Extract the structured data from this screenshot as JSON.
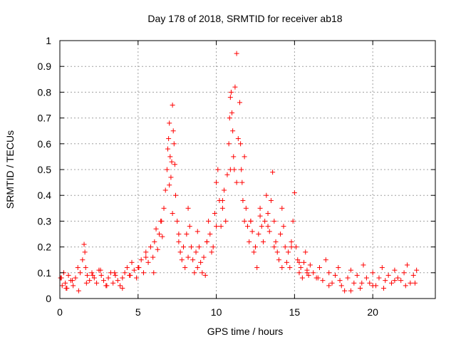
{
  "chart_data": {
    "type": "scatter",
    "title": "Day 178 of 2018, SRMTID for receiver ab18",
    "xlabel": "GPS time / hours",
    "ylabel": "SRMTID / TECUs",
    "xlim": [
      0,
      24
    ],
    "ylim": [
      0,
      1
    ],
    "grid": true,
    "marker": "+",
    "color": "#ff0000",
    "xticks": [
      0,
      5,
      10,
      15,
      20
    ],
    "xtick_labels": [
      "0",
      "5",
      "10",
      "15",
      "20"
    ],
    "yticks": [
      0,
      0.1,
      0.2,
      0.3,
      0.4,
      0.5,
      0.6,
      0.7,
      0.8,
      0.9,
      1
    ],
    "ytick_labels": [
      "0",
      "0.1",
      "0.2",
      "0.3",
      "0.4",
      "0.5",
      "0.6",
      "0.7",
      "0.8",
      "0.9",
      "1"
    ],
    "series": [
      {
        "name": "SRMTID",
        "x": [
          0.05,
          0.15,
          0.25,
          0.35,
          0.45,
          0.55,
          0.7,
          0.85,
          1.0,
          1.15,
          1.3,
          1.45,
          1.55,
          1.6,
          1.65,
          1.75,
          1.9,
          2.05,
          2.2,
          2.35,
          2.5,
          2.65,
          2.8,
          2.95,
          3.1,
          3.25,
          3.4,
          3.55,
          3.7,
          3.85,
          4.0,
          4.15,
          4.3,
          4.45,
          4.6,
          4.75,
          4.9,
          5.05,
          5.2,
          5.35,
          5.5,
          5.65,
          5.8,
          5.95,
          6.05,
          6.15,
          6.25,
          6.35,
          6.45,
          6.55,
          6.65,
          6.75,
          6.85,
          6.9,
          6.95,
          7.0,
          7.05,
          7.1,
          7.15,
          7.2,
          7.25,
          7.3,
          7.35,
          7.4,
          7.5,
          7.6,
          7.7,
          7.8,
          7.9,
          8.0,
          8.1,
          8.2,
          8.3,
          8.4,
          8.5,
          8.6,
          8.7,
          8.8,
          8.9,
          9.0,
          9.1,
          9.2,
          9.3,
          9.4,
          9.5,
          9.6,
          9.7,
          9.8,
          9.9,
          10.0,
          10.1,
          10.2,
          10.3,
          10.4,
          10.5,
          10.6,
          10.7,
          10.8,
          10.85,
          10.9,
          10.95,
          11.0,
          11.05,
          11.1,
          11.15,
          11.2,
          11.3,
          11.4,
          11.5,
          11.55,
          11.6,
          11.65,
          11.7,
          11.8,
          11.9,
          12.0,
          12.1,
          12.2,
          12.3,
          12.4,
          12.5,
          12.6,
          12.7,
          12.8,
          12.9,
          13.0,
          13.1,
          13.2,
          13.3,
          13.4,
          13.5,
          13.6,
          13.7,
          13.8,
          13.9,
          14.0,
          14.1,
          14.2,
          14.3,
          14.4,
          14.5,
          14.6,
          14.7,
          14.8,
          14.9,
          15.0,
          15.1,
          15.2,
          15.3,
          15.4,
          15.5,
          15.6,
          15.7,
          15.8,
          15.9,
          16.0,
          16.2,
          16.4,
          16.6,
          16.8,
          17.0,
          17.2,
          17.4,
          17.6,
          17.8,
          18.0,
          18.2,
          18.4,
          18.6,
          18.8,
          19.0,
          19.2,
          19.4,
          19.6,
          19.8,
          20.0,
          20.2,
          20.4,
          20.6,
          20.8,
          21.0,
          21.2,
          21.4,
          21.6,
          21.8,
          22.0,
          22.2,
          22.4,
          22.6,
          22.8,
          0.1,
          0.4,
          0.8,
          1.2,
          1.7,
          2.1,
          2.6,
          3.0,
          3.5,
          4.0,
          4.5,
          5.0,
          5.5,
          6.0,
          6.5,
          7.0,
          7.2,
          7.6,
          8.2,
          8.8,
          9.4,
          10.0,
          10.4,
          10.9,
          11.3,
          11.8,
          12.2,
          12.8,
          13.3,
          13.7,
          14.2,
          14.8,
          15.3,
          15.8,
          16.5,
          17.2,
          17.9,
          18.6,
          19.3,
          20.0,
          20.7,
          21.4,
          22.1,
          22.7
        ],
        "y": [
          0.08,
          0.05,
          0.1,
          0.06,
          0.04,
          0.09,
          0.07,
          0.05,
          0.08,
          0.12,
          0.1,
          0.15,
          0.21,
          0.18,
          0.12,
          0.09,
          0.07,
          0.1,
          0.08,
          0.06,
          0.11,
          0.09,
          0.07,
          0.05,
          0.08,
          0.1,
          0.06,
          0.09,
          0.07,
          0.05,
          0.08,
          0.1,
          0.12,
          0.09,
          0.14,
          0.11,
          0.08,
          0.12,
          0.15,
          0.1,
          0.18,
          0.14,
          0.2,
          0.16,
          0.22,
          0.27,
          0.19,
          0.25,
          0.3,
          0.24,
          0.35,
          0.42,
          0.5,
          0.58,
          0.62,
          0.68,
          0.55,
          0.47,
          0.53,
          0.75,
          0.65,
          0.6,
          0.52,
          0.4,
          0.3,
          0.22,
          0.18,
          0.15,
          0.2,
          0.12,
          0.25,
          0.35,
          0.28,
          0.2,
          0.15,
          0.1,
          0.18,
          0.26,
          0.2,
          0.14,
          0.1,
          0.16,
          0.09,
          0.22,
          0.3,
          0.25,
          0.18,
          0.2,
          0.33,
          0.45,
          0.5,
          0.38,
          0.28,
          0.35,
          0.42,
          0.3,
          0.48,
          0.6,
          0.7,
          0.78,
          0.8,
          0.72,
          0.65,
          0.55,
          0.5,
          0.82,
          0.95,
          0.62,
          0.76,
          0.6,
          0.5,
          0.45,
          0.38,
          0.3,
          0.35,
          0.28,
          0.22,
          0.3,
          0.26,
          0.18,
          0.2,
          0.12,
          0.25,
          0.35,
          0.28,
          0.22,
          0.3,
          0.4,
          0.33,
          0.26,
          0.38,
          0.49,
          0.3,
          0.22,
          0.18,
          0.15,
          0.25,
          0.35,
          0.28,
          0.2,
          0.14,
          0.18,
          0.12,
          0.22,
          0.3,
          0.41,
          0.2,
          0.15,
          0.1,
          0.12,
          0.08,
          0.14,
          0.18,
          0.11,
          0.09,
          0.13,
          0.1,
          0.08,
          0.12,
          0.07,
          0.15,
          0.1,
          0.06,
          0.09,
          0.12,
          0.05,
          0.03,
          0.08,
          0.11,
          0.06,
          0.09,
          0.04,
          0.13,
          0.08,
          0.06,
          0.1,
          0.05,
          0.08,
          0.12,
          0.07,
          0.09,
          0.06,
          0.11,
          0.08,
          0.07,
          0.1,
          0.13,
          0.06,
          0.09,
          0.11,
          0.08,
          0.04,
          0.07,
          0.03,
          0.06,
          0.09,
          0.11,
          0.05,
          0.1,
          0.04,
          0.09,
          0.12,
          0.16,
          0.1,
          0.3,
          0.44,
          0.33,
          0.25,
          0.16,
          0.12,
          0.22,
          0.28,
          0.38,
          0.5,
          0.45,
          0.55,
          0.3,
          0.32,
          0.28,
          0.2,
          0.12,
          0.2,
          0.14,
          0.1,
          0.08,
          0.05,
          0.07,
          0.03,
          0.06,
          0.05,
          0.04,
          0.07,
          0.05,
          0.06
        ]
      }
    ]
  }
}
